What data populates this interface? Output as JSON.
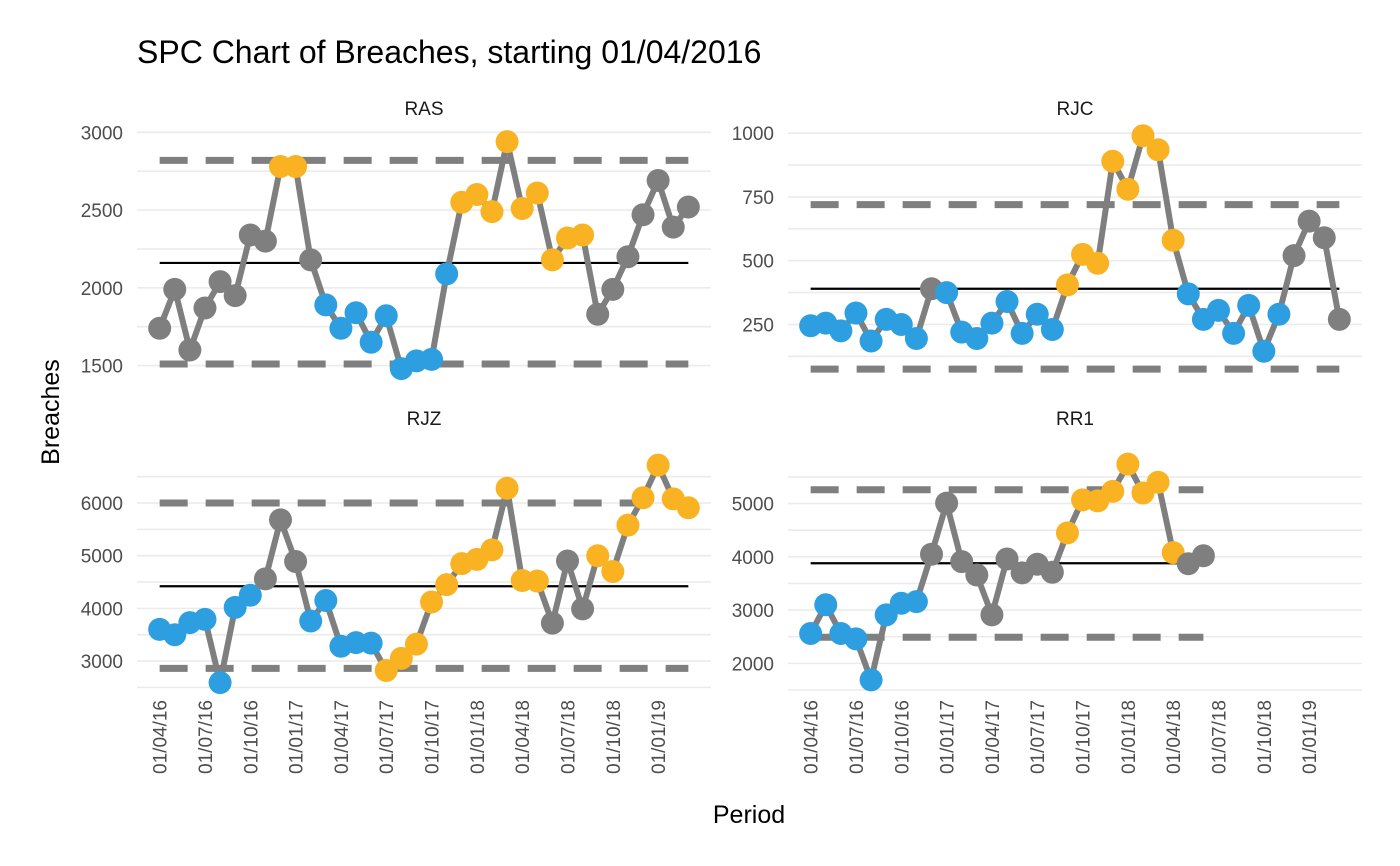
{
  "chart_data": {
    "type": "line",
    "title": "SPC Chart of Breaches, starting 01/04/2016",
    "xlabel": "Period",
    "ylabel": "Breaches",
    "x_tick_labels": [
      "01/04/16",
      "01/07/16",
      "01/10/16",
      "01/01/17",
      "01/04/17",
      "01/07/17",
      "01/10/17",
      "01/01/18",
      "01/04/18",
      "01/07/18",
      "01/10/18",
      "01/01/19"
    ],
    "x_tick_months": [
      0,
      3,
      6,
      9,
      12,
      15,
      18,
      21,
      24,
      27,
      30,
      33
    ],
    "x_range_months": [
      -1.5,
      36.5
    ],
    "grid": true,
    "colors": {
      "line": "#7f7f7f",
      "normal": "#7f7f7f",
      "below": "#2d9fe0",
      "above": "#f9b322",
      "mean": "#000000",
      "limit": "#7f7f7f",
      "grid": "#ebebeb"
    },
    "panels": [
      {
        "name": "RAS",
        "ylim": [
          1420,
          3060
        ],
        "y_ticks": [
          1500,
          2000,
          2500,
          3000
        ],
        "mean": 2160,
        "ucl": 2820,
        "lcl": 1510,
        "limit_months": [
          0,
          35
        ],
        "series": [
          {
            "x": 0,
            "y": 1740,
            "status": "normal"
          },
          {
            "x": 1,
            "y": 1990,
            "status": "normal"
          },
          {
            "x": 2,
            "y": 1600,
            "status": "normal"
          },
          {
            "x": 3,
            "y": 1870,
            "status": "normal"
          },
          {
            "x": 4,
            "y": 2040,
            "status": "normal"
          },
          {
            "x": 5,
            "y": 1950,
            "status": "normal"
          },
          {
            "x": 6,
            "y": 2340,
            "status": "normal"
          },
          {
            "x": 7,
            "y": 2300,
            "status": "normal"
          },
          {
            "x": 8,
            "y": 2780,
            "status": "above"
          },
          {
            "x": 9,
            "y": 2780,
            "status": "above"
          },
          {
            "x": 10,
            "y": 2180,
            "status": "normal"
          },
          {
            "x": 11,
            "y": 1890,
            "status": "below"
          },
          {
            "x": 12,
            "y": 1740,
            "status": "below"
          },
          {
            "x": 13,
            "y": 1840,
            "status": "below"
          },
          {
            "x": 14,
            "y": 1650,
            "status": "below"
          },
          {
            "x": 15,
            "y": 1820,
            "status": "below"
          },
          {
            "x": 16,
            "y": 1480,
            "status": "below"
          },
          {
            "x": 17,
            "y": 1530,
            "status": "below"
          },
          {
            "x": 18,
            "y": 1540,
            "status": "below"
          },
          {
            "x": 19,
            "y": 2090,
            "status": "below"
          },
          {
            "x": 20,
            "y": 2550,
            "status": "above"
          },
          {
            "x": 21,
            "y": 2600,
            "status": "above"
          },
          {
            "x": 22,
            "y": 2490,
            "status": "above"
          },
          {
            "x": 23,
            "y": 2940,
            "status": "above"
          },
          {
            "x": 24,
            "y": 2510,
            "status": "above"
          },
          {
            "x": 25,
            "y": 2610,
            "status": "above"
          },
          {
            "x": 26,
            "y": 2180,
            "status": "above"
          },
          {
            "x": 27,
            "y": 2320,
            "status": "above"
          },
          {
            "x": 28,
            "y": 2340,
            "status": "above"
          },
          {
            "x": 29,
            "y": 1830,
            "status": "normal"
          },
          {
            "x": 30,
            "y": 1990,
            "status": "normal"
          },
          {
            "x": 31,
            "y": 2200,
            "status": "normal"
          },
          {
            "x": 32,
            "y": 2470,
            "status": "normal"
          },
          {
            "x": 33,
            "y": 2690,
            "status": "normal"
          },
          {
            "x": 34,
            "y": 2390,
            "status": "normal"
          },
          {
            "x": 35,
            "y": 2520,
            "status": "normal"
          }
        ]
      },
      {
        "name": "RJC",
        "ylim": [
          40,
          1040
        ],
        "y_ticks": [
          250,
          500,
          750,
          1000
        ],
        "mean": 390,
        "ucl": 720,
        "lcl": 75,
        "limit_months": [
          0,
          35
        ],
        "series": [
          {
            "x": 0,
            "y": 245,
            "status": "below"
          },
          {
            "x": 1,
            "y": 255,
            "status": "below"
          },
          {
            "x": 2,
            "y": 225,
            "status": "below"
          },
          {
            "x": 3,
            "y": 295,
            "status": "below"
          },
          {
            "x": 4,
            "y": 185,
            "status": "below"
          },
          {
            "x": 5,
            "y": 270,
            "status": "below"
          },
          {
            "x": 6,
            "y": 250,
            "status": "below"
          },
          {
            "x": 7,
            "y": 195,
            "status": "below"
          },
          {
            "x": 8,
            "y": 390,
            "status": "normal"
          },
          {
            "x": 9,
            "y": 375,
            "status": "below"
          },
          {
            "x": 10,
            "y": 220,
            "status": "below"
          },
          {
            "x": 11,
            "y": 195,
            "status": "below"
          },
          {
            "x": 12,
            "y": 255,
            "status": "below"
          },
          {
            "x": 13,
            "y": 340,
            "status": "below"
          },
          {
            "x": 14,
            "y": 215,
            "status": "below"
          },
          {
            "x": 15,
            "y": 290,
            "status": "below"
          },
          {
            "x": 16,
            "y": 230,
            "status": "below"
          },
          {
            "x": 17,
            "y": 405,
            "status": "above"
          },
          {
            "x": 18,
            "y": 525,
            "status": "above"
          },
          {
            "x": 19,
            "y": 490,
            "status": "above"
          },
          {
            "x": 20,
            "y": 890,
            "status": "above"
          },
          {
            "x": 21,
            "y": 780,
            "status": "above"
          },
          {
            "x": 22,
            "y": 990,
            "status": "above"
          },
          {
            "x": 23,
            "y": 935,
            "status": "above"
          },
          {
            "x": 24,
            "y": 580,
            "status": "above"
          },
          {
            "x": 25,
            "y": 370,
            "status": "below"
          },
          {
            "x": 26,
            "y": 270,
            "status": "below"
          },
          {
            "x": 27,
            "y": 305,
            "status": "below"
          },
          {
            "x": 28,
            "y": 215,
            "status": "below"
          },
          {
            "x": 29,
            "y": 325,
            "status": "below"
          },
          {
            "x": 30,
            "y": 145,
            "status": "below"
          },
          {
            "x": 31,
            "y": 290,
            "status": "below"
          },
          {
            "x": 32,
            "y": 520,
            "status": "normal"
          },
          {
            "x": 33,
            "y": 655,
            "status": "normal"
          },
          {
            "x": 34,
            "y": 590,
            "status": "normal"
          },
          {
            "x": 35,
            "y": 270,
            "status": "normal"
          }
        ]
      },
      {
        "name": "RJZ",
        "ylim": [
          2450,
          6950
        ],
        "y_ticks": [
          3000,
          4000,
          5000,
          6000
        ],
        "mean": 4420,
        "ucl": 6000,
        "lcl": 2860,
        "limit_months": [
          0,
          35
        ],
        "series": [
          {
            "x": 0,
            "y": 3600,
            "status": "below"
          },
          {
            "x": 1,
            "y": 3500,
            "status": "below"
          },
          {
            "x": 2,
            "y": 3730,
            "status": "below"
          },
          {
            "x": 3,
            "y": 3790,
            "status": "below"
          },
          {
            "x": 4,
            "y": 2590,
            "status": "below"
          },
          {
            "x": 5,
            "y": 4020,
            "status": "below"
          },
          {
            "x": 6,
            "y": 4250,
            "status": "below"
          },
          {
            "x": 7,
            "y": 4560,
            "status": "normal"
          },
          {
            "x": 8,
            "y": 5680,
            "status": "normal"
          },
          {
            "x": 9,
            "y": 4890,
            "status": "normal"
          },
          {
            "x": 10,
            "y": 3760,
            "status": "below"
          },
          {
            "x": 11,
            "y": 4150,
            "status": "below"
          },
          {
            "x": 12,
            "y": 3280,
            "status": "below"
          },
          {
            "x": 13,
            "y": 3350,
            "status": "below"
          },
          {
            "x": 14,
            "y": 3340,
            "status": "below"
          },
          {
            "x": 15,
            "y": 2820,
            "status": "above"
          },
          {
            "x": 16,
            "y": 3050,
            "status": "above"
          },
          {
            "x": 17,
            "y": 3320,
            "status": "above"
          },
          {
            "x": 18,
            "y": 4120,
            "status": "above"
          },
          {
            "x": 19,
            "y": 4450,
            "status": "above"
          },
          {
            "x": 20,
            "y": 4850,
            "status": "above"
          },
          {
            "x": 21,
            "y": 4930,
            "status": "above"
          },
          {
            "x": 22,
            "y": 5110,
            "status": "above"
          },
          {
            "x": 23,
            "y": 6280,
            "status": "above"
          },
          {
            "x": 24,
            "y": 4530,
            "status": "above"
          },
          {
            "x": 25,
            "y": 4520,
            "status": "above"
          },
          {
            "x": 26,
            "y": 3720,
            "status": "normal"
          },
          {
            "x": 27,
            "y": 4900,
            "status": "normal"
          },
          {
            "x": 28,
            "y": 3990,
            "status": "normal"
          },
          {
            "x": 29,
            "y": 5000,
            "status": "above"
          },
          {
            "x": 30,
            "y": 4700,
            "status": "above"
          },
          {
            "x": 31,
            "y": 5580,
            "status": "above"
          },
          {
            "x": 32,
            "y": 6100,
            "status": "above"
          },
          {
            "x": 33,
            "y": 6720,
            "status": "above"
          },
          {
            "x": 34,
            "y": 6080,
            "status": "above"
          },
          {
            "x": 35,
            "y": 5910,
            "status": "above"
          }
        ]
      },
      {
        "name": "RR1",
        "ylim": [
          1500,
          5950
        ],
        "y_ticks": [
          2000,
          3000,
          4000,
          5000
        ],
        "mean": 3880,
        "ucl": 5260,
        "lcl": 2490,
        "limit_months": [
          0,
          26
        ],
        "series": [
          {
            "x": 0,
            "y": 2560,
            "status": "below"
          },
          {
            "x": 1,
            "y": 3100,
            "status": "below"
          },
          {
            "x": 2,
            "y": 2560,
            "status": "below"
          },
          {
            "x": 3,
            "y": 2460,
            "status": "below"
          },
          {
            "x": 4,
            "y": 1690,
            "status": "below"
          },
          {
            "x": 5,
            "y": 2910,
            "status": "below"
          },
          {
            "x": 6,
            "y": 3130,
            "status": "below"
          },
          {
            "x": 7,
            "y": 3160,
            "status": "below"
          },
          {
            "x": 8,
            "y": 4050,
            "status": "normal"
          },
          {
            "x": 9,
            "y": 5010,
            "status": "normal"
          },
          {
            "x": 10,
            "y": 3910,
            "status": "normal"
          },
          {
            "x": 11,
            "y": 3660,
            "status": "normal"
          },
          {
            "x": 12,
            "y": 2910,
            "status": "normal"
          },
          {
            "x": 13,
            "y": 3960,
            "status": "normal"
          },
          {
            "x": 14,
            "y": 3700,
            "status": "normal"
          },
          {
            "x": 15,
            "y": 3860,
            "status": "normal"
          },
          {
            "x": 16,
            "y": 3710,
            "status": "normal"
          },
          {
            "x": 17,
            "y": 4450,
            "status": "above"
          },
          {
            "x": 18,
            "y": 5070,
            "status": "above"
          },
          {
            "x": 19,
            "y": 5050,
            "status": "above"
          },
          {
            "x": 20,
            "y": 5230,
            "status": "above"
          },
          {
            "x": 21,
            "y": 5740,
            "status": "above"
          },
          {
            "x": 22,
            "y": 5200,
            "status": "above"
          },
          {
            "x": 23,
            "y": 5400,
            "status": "above"
          },
          {
            "x": 24,
            "y": 4080,
            "status": "above"
          },
          {
            "x": 25,
            "y": 3870,
            "status": "normal"
          },
          {
            "x": 26,
            "y": 4020,
            "status": "normal"
          }
        ]
      }
    ]
  }
}
